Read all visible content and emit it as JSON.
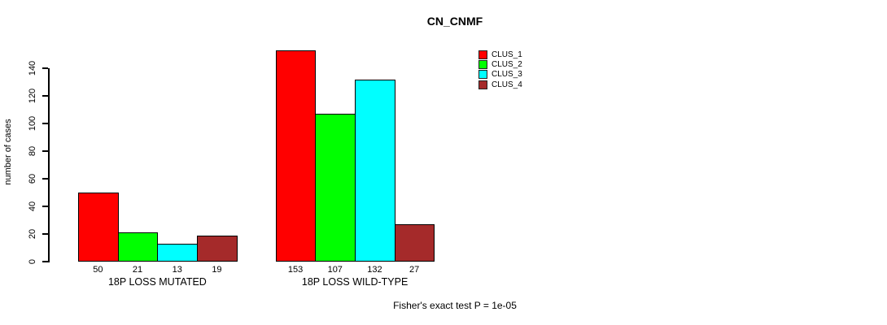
{
  "chart_data": {
    "type": "bar",
    "title": "CN_CNMF",
    "ylabel": "number of cases",
    "xlabel": "",
    "categories": [
      "18P LOSS MUTATED",
      "18P LOSS WILD-TYPE"
    ],
    "series": [
      {
        "name": "CLUS_1",
        "color": "#FF0000",
        "values": [
          50,
          153
        ]
      },
      {
        "name": "CLUS_2",
        "color": "#00FF00",
        "values": [
          21,
          107
        ]
      },
      {
        "name": "CLUS_3",
        "color": "#00FFFF",
        "values": [
          13,
          132
        ]
      },
      {
        "name": "CLUS_4",
        "color": "#A52A2A",
        "values": [
          19,
          27
        ]
      }
    ],
    "yticks": [
      0,
      20,
      40,
      60,
      80,
      100,
      120,
      140
    ],
    "ylim": [
      0,
      157
    ],
    "grid": false,
    "bar_value_labels": [
      [
        50,
        21,
        13,
        19
      ],
      [
        153,
        107,
        132,
        27
      ]
    ],
    "legend_position": "top-right",
    "legend_entries": [
      "CLUS_1",
      "CLUS_2",
      "CLUS_3",
      "CLUS_4"
    ],
    "footnote": "Fisher's exact test P = 1e-05"
  }
}
